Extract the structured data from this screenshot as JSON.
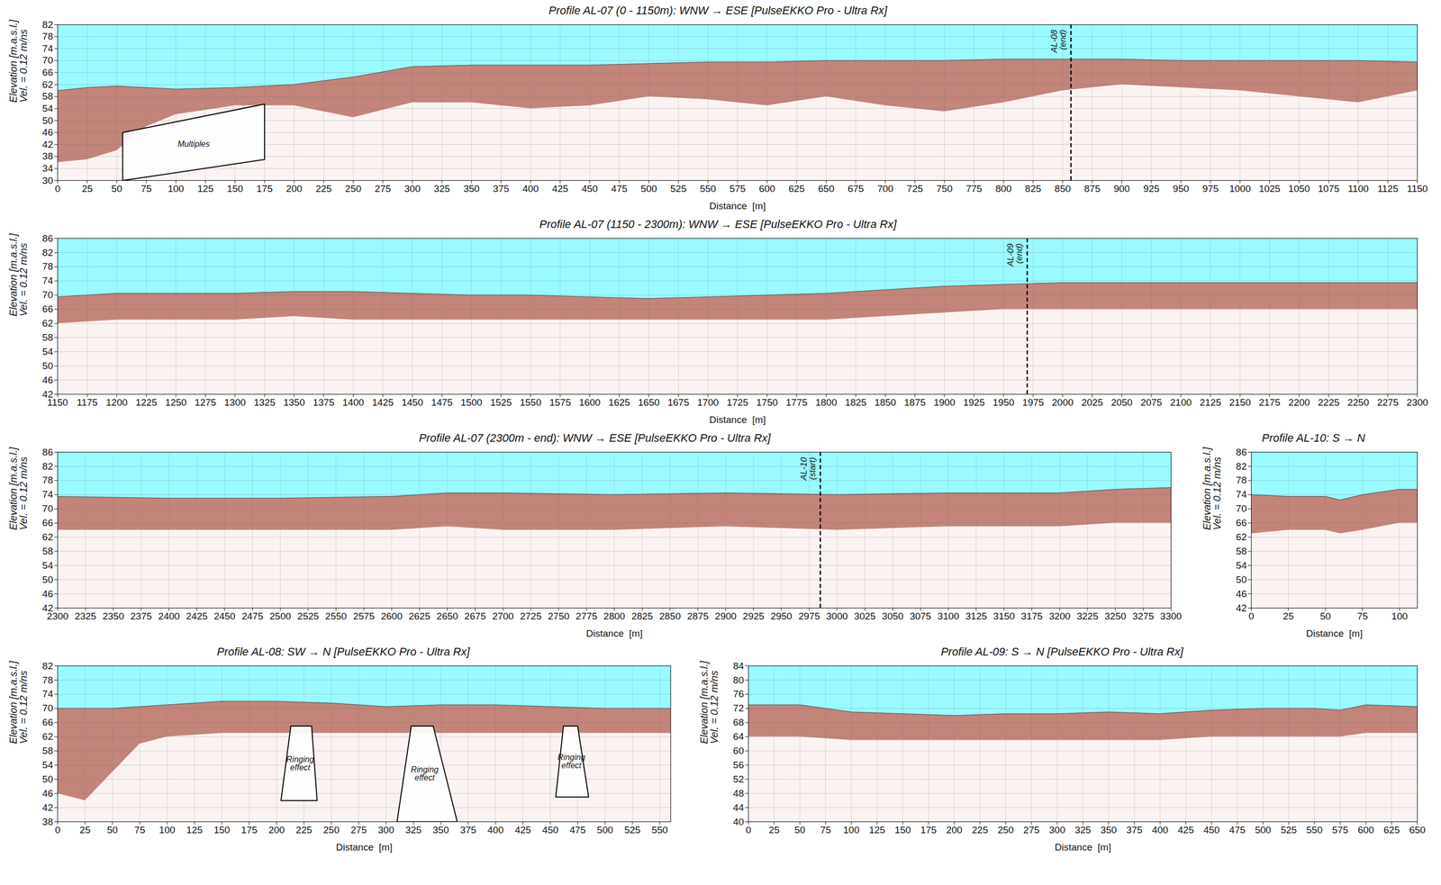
{
  "chart_data": [
    {
      "type": "area",
      "title": "Profile AL-07 (0 - 1150m): WNW → ESE [PulseEKKO Pro - Ultra Rx]",
      "xlabel": "Distance  [m]",
      "ylabel": [
        "Elevation [m.a.s.l.]",
        "Vel. = 0.12 m/ns"
      ],
      "color": "#99fbff",
      "grid": true,
      "xlim": [
        0,
        1150
      ],
      "ylim": [
        30,
        82
      ],
      "xticks": [
        0,
        25,
        50,
        75,
        100,
        125,
        150,
        175,
        200,
        225,
        250,
        275,
        300,
        325,
        350,
        375,
        400,
        425,
        450,
        475,
        500,
        525,
        550,
        575,
        600,
        625,
        650,
        675,
        700,
        725,
        750,
        775,
        800,
        825,
        850,
        875,
        900,
        925,
        950,
        975,
        1000,
        1025,
        1050,
        1075,
        1100,
        1125,
        1150
      ],
      "yticks": [
        30,
        34,
        38,
        42,
        46,
        50,
        54,
        58,
        62,
        66,
        70,
        74,
        78,
        82
      ],
      "x": [
        0,
        25,
        50,
        75,
        100,
        150,
        200,
        250,
        300,
        350,
        400,
        450,
        500,
        550,
        600,
        650,
        700,
        750,
        800,
        850,
        900,
        950,
        1000,
        1050,
        1100,
        1150
      ],
      "surface": {
        "color": "#666666",
        "values": [
          60,
          61,
          61.5,
          61,
          60.5,
          61,
          62,
          64.5,
          68,
          68.5,
          68.5,
          68.5,
          69,
          69.5,
          69.5,
          70,
          70,
          70,
          70.5,
          70.5,
          70.5,
          70,
          70,
          70,
          70,
          69.5
        ]
      },
      "reflection_base": {
        "color": "#9e3a2c",
        "values": [
          36,
          37,
          40,
          48,
          52,
          55,
          55,
          51,
          56,
          56,
          54,
          55,
          58,
          57,
          55,
          58,
          55,
          53,
          56,
          60,
          62,
          61,
          60,
          58,
          56,
          60
        ]
      },
      "markers": [
        {
          "x": 857,
          "label": "AL-08 (end)"
        }
      ],
      "regions": [
        {
          "label": "Multiples",
          "points": [
            [
              55,
              46
            ],
            [
              175,
              55.5
            ],
            [
              175,
              37
            ],
            [
              55,
              30
            ]
          ]
        }
      ]
    },
    {
      "type": "area",
      "title": "Profile AL-07 (1150 - 2300m): WNW → ESE [PulseEKKO Pro - Ultra Rx]",
      "xlabel": "Distance  [m]",
      "ylabel": [
        "Elevation [m.a.s.l.]",
        "Vel. = 0.12 m/ns"
      ],
      "color": "#99fbff",
      "grid": true,
      "xlim": [
        1150,
        2300
      ],
      "ylim": [
        42,
        86
      ],
      "xticks": [
        1150,
        1175,
        1200,
        1225,
        1250,
        1275,
        1300,
        1325,
        1350,
        1375,
        1400,
        1425,
        1450,
        1475,
        1500,
        1525,
        1550,
        1575,
        1600,
        1625,
        1650,
        1675,
        1700,
        1725,
        1750,
        1775,
        1800,
        1825,
        1850,
        1875,
        1900,
        1925,
        1950,
        1975,
        2000,
        2025,
        2050,
        2075,
        2100,
        2125,
        2150,
        2175,
        2200,
        2225,
        2250,
        2275,
        2300
      ],
      "yticks": [
        42,
        46,
        50,
        54,
        58,
        62,
        66,
        70,
        74,
        78,
        82,
        86
      ],
      "x": [
        1150,
        1200,
        1250,
        1300,
        1350,
        1400,
        1450,
        1500,
        1550,
        1600,
        1650,
        1700,
        1750,
        1800,
        1850,
        1900,
        1950,
        2000,
        2050,
        2100,
        2150,
        2200,
        2250,
        2300
      ],
      "surface": {
        "color": "#666666",
        "values": [
          69.5,
          70.5,
          70.5,
          70.5,
          71,
          71,
          70.5,
          70,
          70,
          69.5,
          69,
          69.5,
          70,
          70.5,
          71.5,
          72.5,
          73,
          73.5,
          73.5,
          73.5,
          73.5,
          73.5,
          73.5,
          73.5
        ]
      },
      "reflection_base": {
        "color": "#9e3a2c",
        "values": [
          62,
          63,
          63,
          63,
          64,
          63,
          63,
          63,
          63,
          63,
          63,
          63,
          63,
          63,
          64,
          65,
          66,
          66,
          66,
          66,
          66,
          66,
          66,
          66
        ]
      },
      "markers": [
        {
          "x": 1970,
          "label": "AL-09 (end)"
        }
      ],
      "regions": []
    },
    {
      "type": "area",
      "title": "Profile AL-07 (2300m - end): WNW → ESE [PulseEKKO Pro - Ultra Rx]",
      "xlabel": "Distance  [m]",
      "ylabel": [
        "Elevation [m.a.s.l.]",
        "Vel. = 0.12 m/ns"
      ],
      "color": "#99fbff",
      "grid": true,
      "xlim": [
        2300,
        3300
      ],
      "ylim": [
        42,
        86
      ],
      "xticks": [
        2300,
        2325,
        2350,
        2375,
        2400,
        2425,
        2450,
        2475,
        2500,
        2525,
        2550,
        2575,
        2600,
        2625,
        2650,
        2675,
        2700,
        2725,
        2750,
        2775,
        2800,
        2825,
        2850,
        2875,
        2900,
        2925,
        2950,
        2975,
        3000,
        3025,
        3050,
        3075,
        3100,
        3125,
        3150,
        3175,
        3200,
        3225,
        3250,
        3275,
        3300
      ],
      "yticks": [
        42,
        46,
        50,
        54,
        58,
        62,
        66,
        70,
        74,
        78,
        82,
        86
      ],
      "x": [
        2300,
        2400,
        2500,
        2600,
        2650,
        2700,
        2800,
        2900,
        3000,
        3100,
        3200,
        3250,
        3300
      ],
      "surface": {
        "color": "#666666",
        "values": [
          73.5,
          73,
          73,
          73.5,
          74.5,
          74.5,
          74,
          74.5,
          74,
          74.5,
          74.5,
          75.5,
          76
        ]
      },
      "reflection_base": {
        "color": "#9e3a2c",
        "values": [
          64,
          64,
          64,
          64,
          65,
          64,
          64,
          65,
          64,
          65,
          65,
          66,
          66
        ]
      },
      "markers": [
        {
          "x": 2985,
          "label": "AL-10 (start)"
        }
      ],
      "regions": []
    },
    {
      "type": "area",
      "title": "Profile AL-10: S → N",
      "xlabel": "Distance  [m]",
      "ylabel": [
        "Elevation [m.a.s.l.]",
        "Vel. = 0.12 m/ns"
      ],
      "color": "#99fbff",
      "grid": true,
      "xlim": [
        0,
        112
      ],
      "ylim": [
        42,
        86
      ],
      "xticks": [
        0,
        25,
        50,
        75,
        100
      ],
      "yticks": [
        42,
        46,
        50,
        54,
        58,
        62,
        66,
        70,
        74,
        78,
        82,
        86
      ],
      "x": [
        0,
        25,
        50,
        60,
        75,
        100,
        112
      ],
      "surface": {
        "color": "#666666",
        "values": [
          74,
          73.5,
          73.5,
          72.5,
          74,
          75.5,
          75.5
        ]
      },
      "reflection_base": {
        "color": "#9e3a2c",
        "values": [
          63,
          64,
          64,
          63,
          64,
          66,
          66
        ]
      },
      "markers": [],
      "regions": []
    },
    {
      "type": "area",
      "title": "Profile AL-08: SW → N [PulseEKKO Pro - Ultra Rx]",
      "xlabel": "Distance  [m]",
      "ylabel": [
        "Elevation [m.a.s.l.]",
        "Vel. = 0.12 m/ns"
      ],
      "color": "#99fbff",
      "grid": true,
      "xlim": [
        0,
        560
      ],
      "ylim": [
        38,
        82
      ],
      "xticks": [
        0,
        25,
        50,
        75,
        100,
        125,
        150,
        175,
        200,
        225,
        250,
        275,
        300,
        325,
        350,
        375,
        400,
        425,
        450,
        475,
        500,
        525,
        550
      ],
      "yticks": [
        38,
        42,
        46,
        50,
        54,
        58,
        62,
        66,
        70,
        74,
        78,
        82
      ],
      "x": [
        0,
        25,
        50,
        75,
        100,
        150,
        200,
        250,
        300,
        350,
        400,
        450,
        500,
        560
      ],
      "surface": {
        "color": "#666666",
        "values": [
          70,
          70,
          70,
          70.5,
          71,
          72,
          72,
          71.5,
          70.5,
          71,
          71,
          70.5,
          70,
          70
        ]
      },
      "reflection_base": {
        "color": "#9e3a2c",
        "values": [
          46,
          44,
          52,
          60,
          62,
          63,
          63,
          63,
          63,
          63,
          63,
          63,
          63,
          63
        ]
      },
      "markers": [],
      "regions": [
        {
          "label": "Ringing effect",
          "points": [
            [
              213,
              65
            ],
            [
              232,
              65
            ],
            [
              237,
              44
            ],
            [
              204,
              44
            ]
          ]
        },
        {
          "label": "Ringing effect",
          "points": [
            [
              323,
              65
            ],
            [
              343,
              65
            ],
            [
              365,
              38
            ],
            [
              310,
              38
            ]
          ]
        },
        {
          "label": "Ringing effect",
          "points": [
            [
              462,
              65
            ],
            [
              475,
              65
            ],
            [
              485,
              45
            ],
            [
              455,
              45
            ]
          ]
        }
      ]
    },
    {
      "type": "area",
      "title": "Profile AL-09: S → N [PulseEKKO Pro - Ultra Rx]",
      "xlabel": "Distance  [m]",
      "ylabel": [
        "Elevation [m.a.s.l.]",
        "Vel. = 0.12 m/ns"
      ],
      "color": "#99fbff",
      "grid": true,
      "xlim": [
        0,
        650
      ],
      "ylim": [
        40,
        84
      ],
      "xticks": [
        0,
        25,
        50,
        75,
        100,
        125,
        150,
        175,
        200,
        225,
        250,
        275,
        300,
        325,
        350,
        375,
        400,
        425,
        450,
        475,
        500,
        525,
        550,
        575,
        600,
        625,
        650
      ],
      "yticks": [
        40,
        44,
        48,
        52,
        56,
        60,
        64,
        68,
        72,
        76,
        80,
        84
      ],
      "x": [
        0,
        50,
        100,
        150,
        200,
        250,
        300,
        350,
        400,
        450,
        500,
        550,
        575,
        600,
        650
      ],
      "surface": {
        "color": "#666666",
        "values": [
          73,
          73,
          71,
          70.5,
          70,
          70.5,
          70.5,
          71,
          70.5,
          71.5,
          72,
          72,
          71.5,
          73,
          72.5
        ]
      },
      "reflection_base": {
        "color": "#9e3a2c",
        "values": [
          64,
          64,
          63,
          63,
          63,
          63,
          63,
          63,
          63,
          64,
          64,
          64,
          64,
          65,
          65
        ]
      },
      "markers": [],
      "regions": []
    }
  ]
}
